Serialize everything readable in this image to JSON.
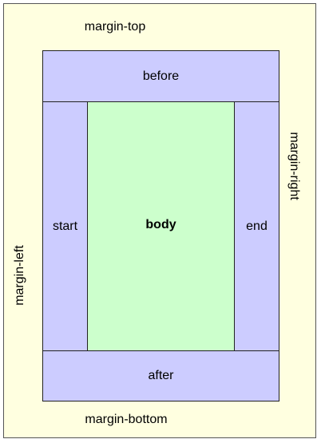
{
  "colors": {
    "page_background": "#ffffe0",
    "region_outer": "#ccccff",
    "region_body": "#ccffcc",
    "border": "#222222"
  },
  "regions": {
    "before": "before",
    "after": "after",
    "start": "start",
    "end": "end",
    "body": "body"
  },
  "margins": {
    "top": "margin-top",
    "bottom": "margin-bottom",
    "left": "margin-left",
    "right": "margin-right"
  }
}
